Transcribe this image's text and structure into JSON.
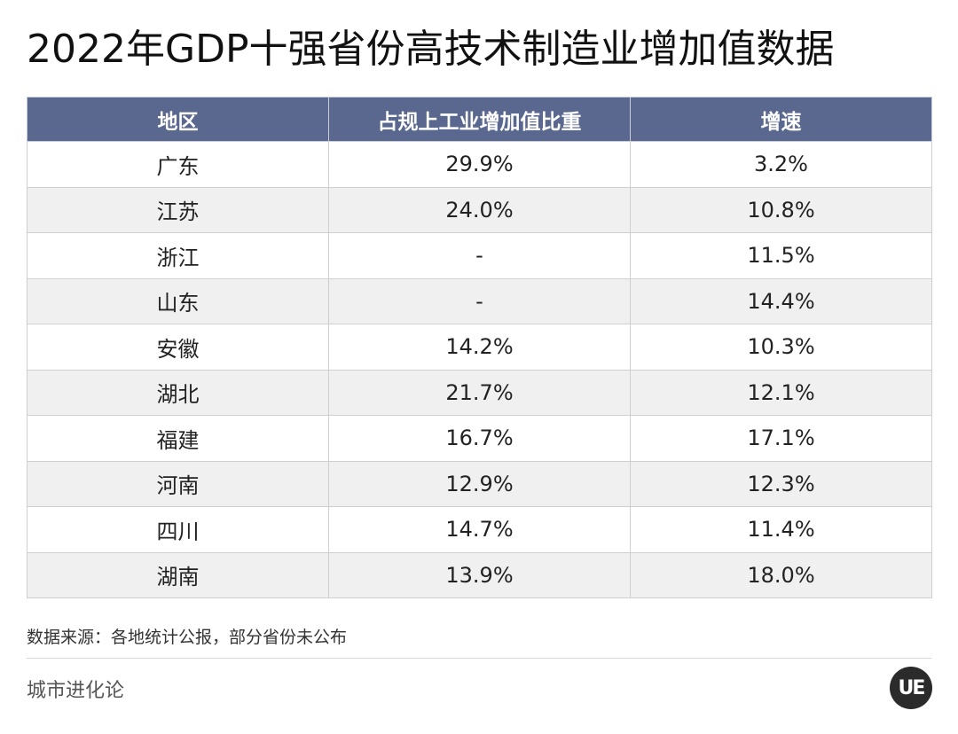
{
  "header": {
    "title": "2022年GDP十强省份高技术制造业增加值数据"
  },
  "table": {
    "columns": [
      "地区",
      "占规上工业增加值比重",
      "增速"
    ],
    "rows": [
      [
        "广东",
        "29.9%",
        "3.2%"
      ],
      [
        "江苏",
        "24.0%",
        "10.8%"
      ],
      [
        "浙江",
        "-",
        "11.5%"
      ],
      [
        "山东",
        "-",
        "14.4%"
      ],
      [
        "安徽",
        "14.2%",
        "10.3%"
      ],
      [
        "湖北",
        "21.7%",
        "12.1%"
      ],
      [
        "福建",
        "16.7%",
        "17.1%"
      ],
      [
        "河南",
        "12.9%",
        "12.3%"
      ],
      [
        "四川",
        "14.7%",
        "11.4%"
      ],
      [
        "湖南",
        "13.9%",
        "18.0%"
      ]
    ]
  },
  "chart_data": {
    "type": "table",
    "title": "2022年GDP十强省份高技术制造业增加值数据",
    "columns": [
      "地区",
      "占规上工业增加值比重",
      "增速"
    ],
    "categories": [
      "广东",
      "江苏",
      "浙江",
      "山东",
      "安徽",
      "湖北",
      "福建",
      "河南",
      "四川",
      "湖南"
    ],
    "series": [
      {
        "name": "占规上工业增加值比重",
        "values": [
          "29.9%",
          "24.0%",
          "-",
          "-",
          "14.2%",
          "21.7%",
          "16.7%",
          "12.9%",
          "14.7%",
          "13.9%"
        ]
      },
      {
        "name": "增速",
        "values": [
          "3.2%",
          "10.8%",
          "11.5%",
          "14.4%",
          "10.3%",
          "12.1%",
          "17.1%",
          "12.3%",
          "11.4%",
          "18.0%"
        ]
      }
    ]
  },
  "footer": {
    "source": "数据来源：各地统计公报，部分省份未公布",
    "brand": "城市进化论",
    "logo_text": "UE",
    "logo_icon": "ue-logo-icon"
  },
  "colors": {
    "header_bg": "#5a6890",
    "stripe": "#f0f0f0"
  }
}
